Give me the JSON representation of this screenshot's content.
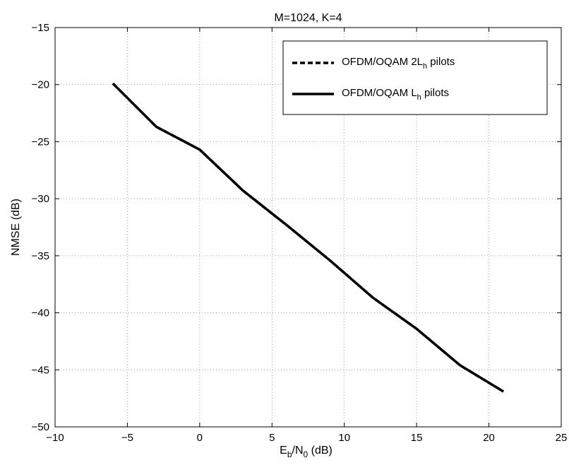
{
  "chart_data": {
    "type": "line",
    "title": "M=1024, K=4",
    "xlabel": "E_b/N_0 (dB)",
    "xlabel_parts": {
      "main1": "E",
      "sub1": "b",
      "main2": "/N",
      "sub2": "0",
      "tail": " (dB)"
    },
    "ylabel": "NMSE (dB)",
    "xlim": [
      -10,
      25
    ],
    "ylim": [
      -50,
      -15
    ],
    "xticks": [
      -10,
      -5,
      0,
      5,
      10,
      15,
      20,
      25
    ],
    "yticks": [
      -50,
      -45,
      -40,
      -35,
      -30,
      -25,
      -20,
      -15
    ],
    "xtick_labels": [
      "−10",
      "−5",
      "0",
      "5",
      "10",
      "15",
      "20",
      "25"
    ],
    "ytick_labels": [
      "−50",
      "−45",
      "−40",
      "−35",
      "−30",
      "−25",
      "−20",
      "−15"
    ],
    "grid": true,
    "legend_position": "top-right",
    "series": [
      {
        "name": "OFDM/OQAM 2L_h pilots",
        "label_parts": {
          "pre": "OFDM/OQAM 2L",
          "sub": "h",
          "post": " pilots"
        },
        "style": "dashed",
        "color": "#000000",
        "x": [
          -6,
          -3,
          0,
          3,
          6,
          9,
          12,
          15,
          18,
          21
        ],
        "y": [
          -19.9,
          -23.7,
          -25.7,
          -29.3,
          -32.3,
          -35.4,
          -38.7,
          -41.4,
          -44.6,
          -46.9
        ]
      },
      {
        "name": "OFDM/OQAM L_h pilots",
        "label_parts": {
          "pre": "OFDM/OQAM L",
          "sub": "h",
          "post": " pilots"
        },
        "style": "solid",
        "color": "#000000",
        "x": [
          -6,
          -3,
          0,
          3,
          6,
          9,
          12,
          15,
          18,
          21
        ],
        "y": [
          -19.9,
          -23.7,
          -25.7,
          -29.3,
          -32.3,
          -35.4,
          -38.7,
          -41.4,
          -44.6,
          -46.9
        ]
      }
    ]
  }
}
